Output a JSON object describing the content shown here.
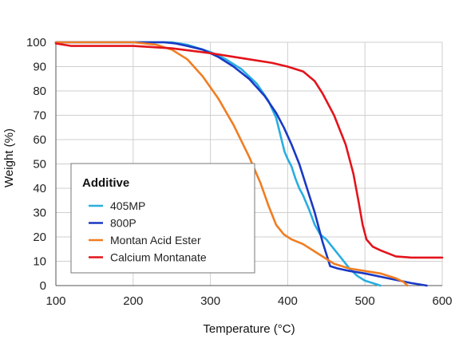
{
  "chart_data": {
    "type": "line",
    "title": "",
    "xlabel": "Temperature (°C)",
    "ylabel": "Weight (%)",
    "xlim": [
      100,
      600
    ],
    "ylim": [
      0,
      100
    ],
    "x_ticks": [
      100,
      200,
      300,
      400,
      500,
      600
    ],
    "y_ticks": [
      0,
      10,
      20,
      30,
      40,
      50,
      60,
      70,
      80,
      90,
      100
    ],
    "grid": true,
    "legend": {
      "title": "Additive",
      "placement": "lower-left"
    },
    "series": [
      {
        "name": "405MP",
        "color": "#29aee0",
        "points": [
          [
            100,
            100
          ],
          [
            150,
            100
          ],
          [
            200,
            100
          ],
          [
            250,
            100
          ],
          [
            270,
            99
          ],
          [
            300,
            96
          ],
          [
            320,
            93
          ],
          [
            340,
            89
          ],
          [
            360,
            83
          ],
          [
            375,
            76
          ],
          [
            385,
            69
          ],
          [
            392,
            60
          ],
          [
            396,
            55
          ],
          [
            400,
            52
          ],
          [
            405,
            49
          ],
          [
            410,
            44
          ],
          [
            415,
            40
          ],
          [
            420,
            37
          ],
          [
            428,
            31
          ],
          [
            435,
            25
          ],
          [
            442,
            21
          ],
          [
            450,
            19
          ],
          [
            460,
            15
          ],
          [
            470,
            11
          ],
          [
            480,
            7
          ],
          [
            490,
            4
          ],
          [
            500,
            2
          ],
          [
            510,
            1
          ],
          [
            520,
            0
          ]
        ]
      },
      {
        "name": "800P",
        "color": "#1a39c4",
        "points": [
          [
            100,
            100
          ],
          [
            150,
            100
          ],
          [
            200,
            100
          ],
          [
            240,
            100
          ],
          [
            255,
            99.5
          ],
          [
            270,
            98.5
          ],
          [
            290,
            97
          ],
          [
            310,
            94
          ],
          [
            330,
            90
          ],
          [
            350,
            85
          ],
          [
            370,
            78
          ],
          [
            385,
            71
          ],
          [
            395,
            65
          ],
          [
            405,
            58
          ],
          [
            415,
            50
          ],
          [
            425,
            40
          ],
          [
            435,
            30
          ],
          [
            445,
            18
          ],
          [
            450,
            13
          ],
          [
            455,
            8
          ],
          [
            465,
            7
          ],
          [
            480,
            6
          ],
          [
            500,
            5
          ],
          [
            530,
            3
          ],
          [
            560,
            1
          ],
          [
            580,
            0
          ]
        ]
      },
      {
        "name": "Montan Acid Ester",
        "color": "#f07d21",
        "points": [
          [
            100,
            100
          ],
          [
            150,
            100
          ],
          [
            200,
            100
          ],
          [
            230,
            99
          ],
          [
            250,
            97
          ],
          [
            270,
            93
          ],
          [
            290,
            86
          ],
          [
            310,
            77
          ],
          [
            330,
            66
          ],
          [
            350,
            53
          ],
          [
            365,
            42
          ],
          [
            375,
            33
          ],
          [
            385,
            25
          ],
          [
            395,
            21
          ],
          [
            405,
            19
          ],
          [
            420,
            17
          ],
          [
            440,
            13
          ],
          [
            460,
            9
          ],
          [
            480,
            7
          ],
          [
            500,
            6
          ],
          [
            520,
            5
          ],
          [
            540,
            3
          ],
          [
            550,
            1.5
          ],
          [
            555,
            0
          ]
        ]
      },
      {
        "name": "Calcium Montanate",
        "color": "#e3141b",
        "points": [
          [
            100,
            99.5
          ],
          [
            120,
            98.5
          ],
          [
            150,
            98.5
          ],
          [
            200,
            98.5
          ],
          [
            250,
            97.5
          ],
          [
            300,
            95.5
          ],
          [
            350,
            93
          ],
          [
            380,
            91.5
          ],
          [
            400,
            90
          ],
          [
            420,
            88
          ],
          [
            435,
            84
          ],
          [
            445,
            79
          ],
          [
            460,
            70
          ],
          [
            475,
            58
          ],
          [
            485,
            46
          ],
          [
            492,
            34
          ],
          [
            497,
            25
          ],
          [
            502,
            19
          ],
          [
            510,
            16
          ],
          [
            520,
            14.5
          ],
          [
            540,
            12
          ],
          [
            560,
            11.5
          ],
          [
            580,
            11.5
          ],
          [
            600,
            11.5
          ]
        ]
      }
    ]
  }
}
